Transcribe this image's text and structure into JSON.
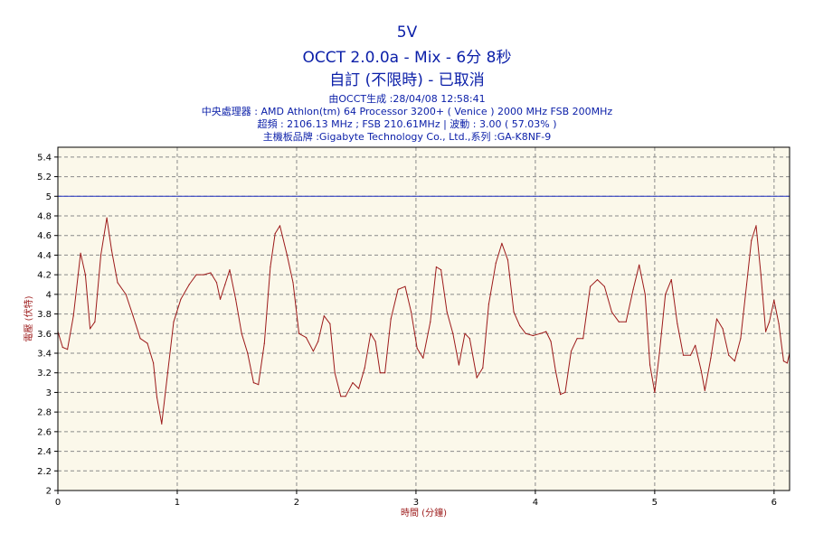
{
  "header": {
    "title": "5V",
    "subtitle": "OCCT 2.0.0a - Mix - 6分 8秒",
    "status": "自訂 (不限時) - 已取消",
    "info_lines": [
      "由OCCT生成 :28/04/08 12:58:41",
      "中央處理器 : AMD Athlon(tm) 64 Processor 3200+ ( Venice ) 2000 MHz FSB 200MHz",
      "超頻 : 2106.13 MHz ; FSB 210.61MHz | 波動 : 3.00 ( 57.03% )",
      "主機板品牌 :Gigabyte Technology Co., Ltd.,系列 :GA-K8NF-9"
    ]
  },
  "colors": {
    "plot_bg": "#fbf8ea",
    "line": "#9c1a1a",
    "reference": "#2030c0",
    "grid": "#8a8a8a",
    "axis_title": "#9c1a1a",
    "header": "#0a1ea8"
  },
  "chart_data": {
    "type": "line",
    "xlabel": "時間 (分鐘)",
    "ylabel": "電壓 (伏特)",
    "xlim": [
      0,
      6.13
    ],
    "ylim": [
      2,
      5.5
    ],
    "xticks": [
      0,
      1,
      2,
      3,
      4,
      5,
      6
    ],
    "yticks": [
      2,
      2.2,
      2.4,
      2.6,
      2.8,
      3,
      3.2,
      3.4,
      3.6,
      3.8,
      4,
      4.2,
      4.4,
      4.6,
      4.8,
      5,
      5.2,
      5.4
    ],
    "grid": true,
    "reference_line": 5,
    "series": [
      {
        "values": [
          [
            0.0,
            3.62
          ],
          [
            0.04,
            3.46
          ],
          [
            0.08,
            3.44
          ],
          [
            0.13,
            3.78
          ],
          [
            0.19,
            4.42
          ],
          [
            0.23,
            4.2
          ],
          [
            0.27,
            3.65
          ],
          [
            0.31,
            3.72
          ],
          [
            0.36,
            4.4
          ],
          [
            0.41,
            4.78
          ],
          [
            0.45,
            4.45
          ],
          [
            0.5,
            4.12
          ],
          [
            0.57,
            4.0
          ],
          [
            0.63,
            3.78
          ],
          [
            0.69,
            3.55
          ],
          [
            0.75,
            3.5
          ],
          [
            0.8,
            3.3
          ],
          [
            0.83,
            2.95
          ],
          [
            0.87,
            2.68
          ],
          [
            0.92,
            3.2
          ],
          [
            0.97,
            3.72
          ],
          [
            1.03,
            3.95
          ],
          [
            1.1,
            4.1
          ],
          [
            1.16,
            4.2
          ],
          [
            1.22,
            4.2
          ],
          [
            1.28,
            4.22
          ],
          [
            1.33,
            4.12
          ],
          [
            1.36,
            3.95
          ],
          [
            1.4,
            4.1
          ],
          [
            1.44,
            4.25
          ],
          [
            1.49,
            3.95
          ],
          [
            1.54,
            3.6
          ],
          [
            1.59,
            3.4
          ],
          [
            1.64,
            3.1
          ],
          [
            1.68,
            3.08
          ],
          [
            1.73,
            3.5
          ],
          [
            1.78,
            4.28
          ],
          [
            1.82,
            4.62
          ],
          [
            1.86,
            4.7
          ],
          [
            1.92,
            4.4
          ],
          [
            1.97,
            4.12
          ],
          [
            2.02,
            3.6
          ],
          [
            2.08,
            3.56
          ],
          [
            2.14,
            3.42
          ],
          [
            2.18,
            3.52
          ],
          [
            2.23,
            3.78
          ],
          [
            2.28,
            3.7
          ],
          [
            2.32,
            3.2
          ],
          [
            2.37,
            2.96
          ],
          [
            2.41,
            2.96
          ],
          [
            2.47,
            3.1
          ],
          [
            2.52,
            3.04
          ],
          [
            2.57,
            3.25
          ],
          [
            2.62,
            3.6
          ],
          [
            2.66,
            3.52
          ],
          [
            2.7,
            3.2
          ],
          [
            2.74,
            3.2
          ],
          [
            2.79,
            3.75
          ],
          [
            2.85,
            4.05
          ],
          [
            2.91,
            4.08
          ],
          [
            2.96,
            3.82
          ],
          [
            3.01,
            3.45
          ],
          [
            3.06,
            3.35
          ],
          [
            3.12,
            3.72
          ],
          [
            3.17,
            4.28
          ],
          [
            3.21,
            4.25
          ],
          [
            3.26,
            3.82
          ],
          [
            3.31,
            3.6
          ],
          [
            3.36,
            3.28
          ],
          [
            3.41,
            3.6
          ],
          [
            3.45,
            3.55
          ],
          [
            3.51,
            3.15
          ],
          [
            3.56,
            3.25
          ],
          [
            3.61,
            3.9
          ],
          [
            3.67,
            4.32
          ],
          [
            3.72,
            4.52
          ],
          [
            3.77,
            4.35
          ],
          [
            3.82,
            3.82
          ],
          [
            3.87,
            3.68
          ],
          [
            3.92,
            3.6
          ],
          [
            3.98,
            3.58
          ],
          [
            4.04,
            3.6
          ],
          [
            4.09,
            3.62
          ],
          [
            4.13,
            3.52
          ],
          [
            4.17,
            3.22
          ],
          [
            4.21,
            2.98
          ],
          [
            4.25,
            3.0
          ],
          [
            4.3,
            3.42
          ],
          [
            4.35,
            3.55
          ],
          [
            4.4,
            3.55
          ],
          [
            4.46,
            4.08
          ],
          [
            4.52,
            4.15
          ],
          [
            4.58,
            4.08
          ],
          [
            4.64,
            3.82
          ],
          [
            4.7,
            3.72
          ],
          [
            4.76,
            3.72
          ],
          [
            4.82,
            4.05
          ],
          [
            4.87,
            4.3
          ],
          [
            4.92,
            4.0
          ],
          [
            4.96,
            3.28
          ],
          [
            5.0,
            3.0
          ],
          [
            5.04,
            3.4
          ],
          [
            5.09,
            4.0
          ],
          [
            5.14,
            4.15
          ],
          [
            5.19,
            3.7
          ],
          [
            5.24,
            3.38
          ],
          [
            5.3,
            3.38
          ],
          [
            5.34,
            3.48
          ],
          [
            5.39,
            3.22
          ],
          [
            5.42,
            3.02
          ],
          [
            5.47,
            3.35
          ],
          [
            5.52,
            3.75
          ],
          [
            5.57,
            3.65
          ],
          [
            5.62,
            3.38
          ],
          [
            5.67,
            3.32
          ],
          [
            5.72,
            3.55
          ],
          [
            5.77,
            4.1
          ],
          [
            5.81,
            4.55
          ],
          [
            5.85,
            4.7
          ],
          [
            5.89,
            4.2
          ],
          [
            5.93,
            3.62
          ],
          [
            5.96,
            3.72
          ],
          [
            6.0,
            3.94
          ],
          [
            6.04,
            3.7
          ],
          [
            6.08,
            3.32
          ],
          [
            6.11,
            3.3
          ],
          [
            6.13,
            3.4
          ]
        ]
      }
    ]
  }
}
